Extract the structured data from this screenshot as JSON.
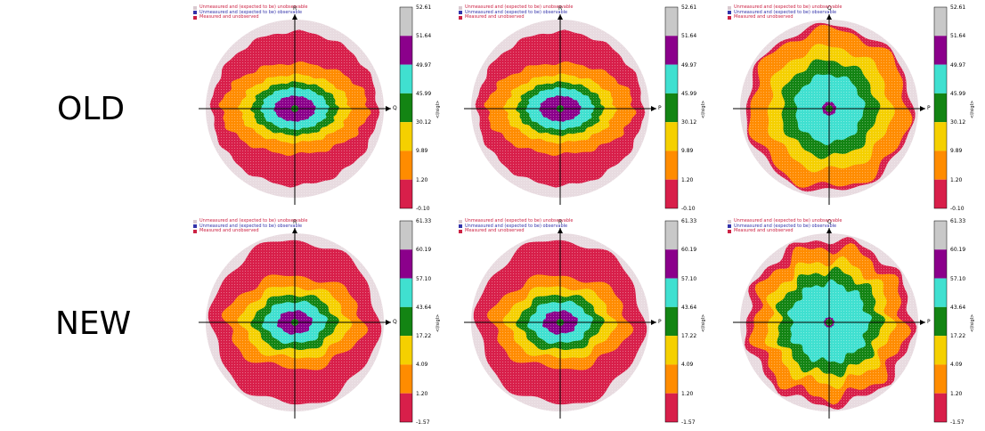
{
  "rows": [
    {
      "label": "OLD",
      "colorbar_ticks": [
        "52.61",
        "51.64",
        "49.97",
        "45.99",
        "30.12",
        "9.89",
        "1.20",
        "-0.10"
      ]
    },
    {
      "label": "NEW",
      "colorbar_ticks": [
        "61.33",
        "60.19",
        "57.10",
        "43.64",
        "17.22",
        "4.09",
        "1.20",
        "-1.57"
      ]
    }
  ],
  "legend": [
    {
      "text": "Unmeasured and (expected to be) unobservable",
      "color": "#d9c9d0",
      "text_color": "#cc2244"
    },
    {
      "text": "Unmeasured and (expected to be) observable",
      "color": "#3333aa",
      "text_color": "#3333aa"
    },
    {
      "text": "Measured and unobserved",
      "color": "#cc2244",
      "text_color": "#cc2244"
    }
  ],
  "colorbar_title": "<I/sigI>",
  "colors": {
    "band": [
      "#d81f4a",
      "#ff8c00",
      "#f5d000",
      "#138413",
      "#40e0d0",
      "#8b008b",
      "#c8c8c8"
    ],
    "unobservable": "#e8dbe0"
  },
  "chart_data": [
    {
      "type": "heatmap",
      "row": "OLD",
      "axes": [
        "Q",
        "R"
      ],
      "shape": "old-ellipse"
    },
    {
      "type": "heatmap",
      "row": "OLD",
      "axes": [
        "P",
        "R"
      ],
      "shape": "old-ellipse"
    },
    {
      "type": "heatmap",
      "row": "OLD",
      "axes": [
        "P",
        "Q"
      ],
      "shape": "old-round"
    },
    {
      "type": "heatmap",
      "row": "NEW",
      "axes": [
        "Q",
        "R"
      ],
      "shape": "new-ellipse"
    },
    {
      "type": "heatmap",
      "row": "NEW",
      "axes": [
        "P",
        "R"
      ],
      "shape": "new-ellipse"
    },
    {
      "type": "heatmap",
      "row": "NEW",
      "axes": [
        "P",
        "Q"
      ],
      "shape": "new-round"
    }
  ]
}
